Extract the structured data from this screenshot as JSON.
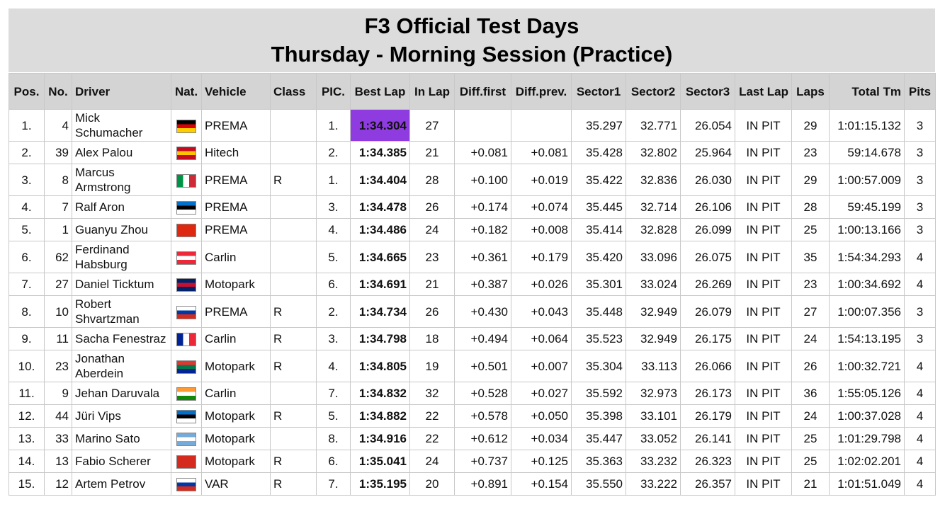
{
  "header": {
    "title": [
      "F3 Official Test Days",
      "Thursday - Morning Session (Practice)"
    ]
  },
  "table": {
    "columns": [
      "Pos.",
      "No.",
      "Driver",
      "Nat.",
      "Vehicle",
      "Class",
      "PIC.",
      "Best Lap",
      "In Lap",
      "Diff.first",
      "Diff.prev.",
      "Sector1",
      "Sector2",
      "Sector3",
      "Last Lap",
      "Laps",
      "Total Tm",
      "Pits"
    ],
    "rows": [
      {
        "pos": "1.",
        "no": 4,
        "driver": "Mick Schumacher",
        "vehicle": "PREMA",
        "pic": "1.",
        "best": "1:34.304",
        "inlap": 27,
        "s1": "35.297",
        "s2": "32.771",
        "s3": "26.054",
        "last": "IN PIT",
        "laps": 29,
        "total": "1:01:15.132",
        "pits": 3
      },
      {
        "pos": "2.",
        "no": 39,
        "driver": "Alex Palou",
        "vehicle": "Hitech",
        "pic": "2.",
        "best": "1:34.385",
        "inlap": 21,
        "dfirst": "+0.081",
        "dprev": "+0.081",
        "s1": "35.428",
        "s2": "32.802",
        "s3": "25.964",
        "last": "IN PIT",
        "laps": 23,
        "total": "59:14.678",
        "pits": 3
      },
      {
        "pos": "3.",
        "no": 8,
        "driver": "Marcus Armstrong",
        "vehicle": "PREMA",
        "class": "R",
        "pic": "1.",
        "best": "1:34.404",
        "inlap": 28,
        "dfirst": "+0.100",
        "dprev": "+0.019",
        "s1": "35.422",
        "s2": "32.836",
        "s3": "26.030",
        "last": "IN PIT",
        "laps": 29,
        "total": "1:00:57.009",
        "pits": 3
      },
      {
        "pos": "4.",
        "no": 7,
        "driver": "Ralf Aron",
        "vehicle": "PREMA",
        "pic": "3.",
        "best": "1:34.478",
        "inlap": 26,
        "dfirst": "+0.174",
        "dprev": "+0.074",
        "s1": "35.445",
        "s2": "32.714",
        "s3": "26.106",
        "last": "IN PIT",
        "laps": 28,
        "total": "59:45.199",
        "pits": 3
      },
      {
        "pos": "5.",
        "no": 1,
        "driver": "Guanyu Zhou",
        "vehicle": "PREMA",
        "pic": "4.",
        "best": "1:34.486",
        "inlap": 24,
        "dfirst": "+0.182",
        "dprev": "+0.008",
        "s1": "35.414",
        "s2": "32.828",
        "s3": "26.099",
        "last": "IN PIT",
        "laps": 25,
        "total": "1:00:13.166",
        "pits": 3
      },
      {
        "pos": "6.",
        "no": 62,
        "driver": "Ferdinand Habsburg",
        "vehicle": "Carlin",
        "pic": "5.",
        "best": "1:34.665",
        "inlap": 23,
        "dfirst": "+0.361",
        "dprev": "+0.179",
        "s1": "35.420",
        "s2": "33.096",
        "s3": "26.075",
        "last": "IN PIT",
        "laps": 35,
        "total": "1:54:34.293",
        "pits": 4
      },
      {
        "pos": "7.",
        "no": 27,
        "driver": "Daniel Ticktum",
        "vehicle": "Motopark",
        "pic": "6.",
        "best": "1:34.691",
        "inlap": 21,
        "dfirst": "+0.387",
        "dprev": "+0.026",
        "s1": "35.301",
        "s2": "33.024",
        "s3": "26.269",
        "last": "IN PIT",
        "laps": 23,
        "total": "1:00:34.692",
        "pits": 4
      },
      {
        "pos": "8.",
        "no": 10,
        "driver": "Robert Shvartzman",
        "vehicle": "PREMA",
        "class": "R",
        "pic": "2.",
        "best": "1:34.734",
        "inlap": 26,
        "dfirst": "+0.430",
        "dprev": "+0.043",
        "s1": "35.448",
        "s2": "32.949",
        "s3": "26.079",
        "last": "IN PIT",
        "laps": 27,
        "total": "1:00:07.356",
        "pits": 3
      },
      {
        "pos": "9.",
        "no": 11,
        "driver": "Sacha Fenestraz",
        "vehicle": "Carlin",
        "class": "R",
        "pic": "3.",
        "best": "1:34.798",
        "inlap": 18,
        "dfirst": "+0.494",
        "dprev": "+0.064",
        "s1": "35.523",
        "s2": "32.949",
        "s3": "26.175",
        "last": "IN PIT",
        "laps": 24,
        "total": "1:54:13.195",
        "pits": 3
      },
      {
        "pos": "10.",
        "no": 23,
        "driver": "Jonathan Aberdein",
        "vehicle": "Motopark",
        "class": "R",
        "pic": "4.",
        "best": "1:34.805",
        "inlap": 19,
        "dfirst": "+0.501",
        "dprev": "+0.007",
        "s1": "35.304",
        "s2": "33.113",
        "s3": "26.066",
        "last": "IN PIT",
        "laps": 26,
        "total": "1:00:32.721",
        "pits": 4
      },
      {
        "pos": "11.",
        "no": 9,
        "driver": "Jehan Daruvala",
        "vehicle": "Carlin",
        "pic": "7.",
        "best": "1:34.832",
        "inlap": 32,
        "dfirst": "+0.528",
        "dprev": "+0.027",
        "s1": "35.592",
        "s2": "32.973",
        "s3": "26.173",
        "last": "IN PIT",
        "laps": 36,
        "total": "1:55:05.126",
        "pits": 4
      },
      {
        "pos": "12.",
        "no": 44,
        "driver": "Jüri Vips",
        "vehicle": "Motopark",
        "class": "R",
        "pic": "5.",
        "best": "1:34.882",
        "inlap": 22,
        "dfirst": "+0.578",
        "dprev": "+0.050",
        "s1": "35.398",
        "s2": "33.101",
        "s3": "26.179",
        "last": "IN PIT",
        "laps": 24,
        "total": "1:00:37.028",
        "pits": 4
      },
      {
        "pos": "13.",
        "no": 33,
        "driver": "Marino Sato",
        "vehicle": "Motopark",
        "pic": "8.",
        "best": "1:34.916",
        "inlap": 22,
        "dfirst": "+0.612",
        "dprev": "+0.034",
        "s1": "35.447",
        "s2": "33.052",
        "s3": "26.141",
        "last": "IN PIT",
        "laps": 25,
        "total": "1:01:29.798",
        "pits": 4
      },
      {
        "pos": "14.",
        "no": 13,
        "driver": "Fabio Scherer",
        "vehicle": "Motopark",
        "class": "R",
        "pic": "6.",
        "best": "1:35.041",
        "inlap": 24,
        "dfirst": "+0.737",
        "dprev": "+0.125",
        "s1": "35.363",
        "s2": "33.232",
        "s3": "26.323",
        "last": "IN PIT",
        "laps": 25,
        "total": "1:02:02.201",
        "pits": 4
      },
      {
        "pos": "15.",
        "no": 12,
        "driver": "Artem Petrov",
        "vehicle": "VAR",
        "class": "R",
        "pic": "7.",
        "best": "1:35.195",
        "inlap": 20,
        "dfirst": "+0.891",
        "dprev": "+0.154",
        "s1": "35.550",
        "s2": "33.222",
        "s3": "26.357",
        "last": "IN PIT",
        "laps": 21,
        "total": "1:01:51.049",
        "pits": 4
      }
    ]
  }
}
